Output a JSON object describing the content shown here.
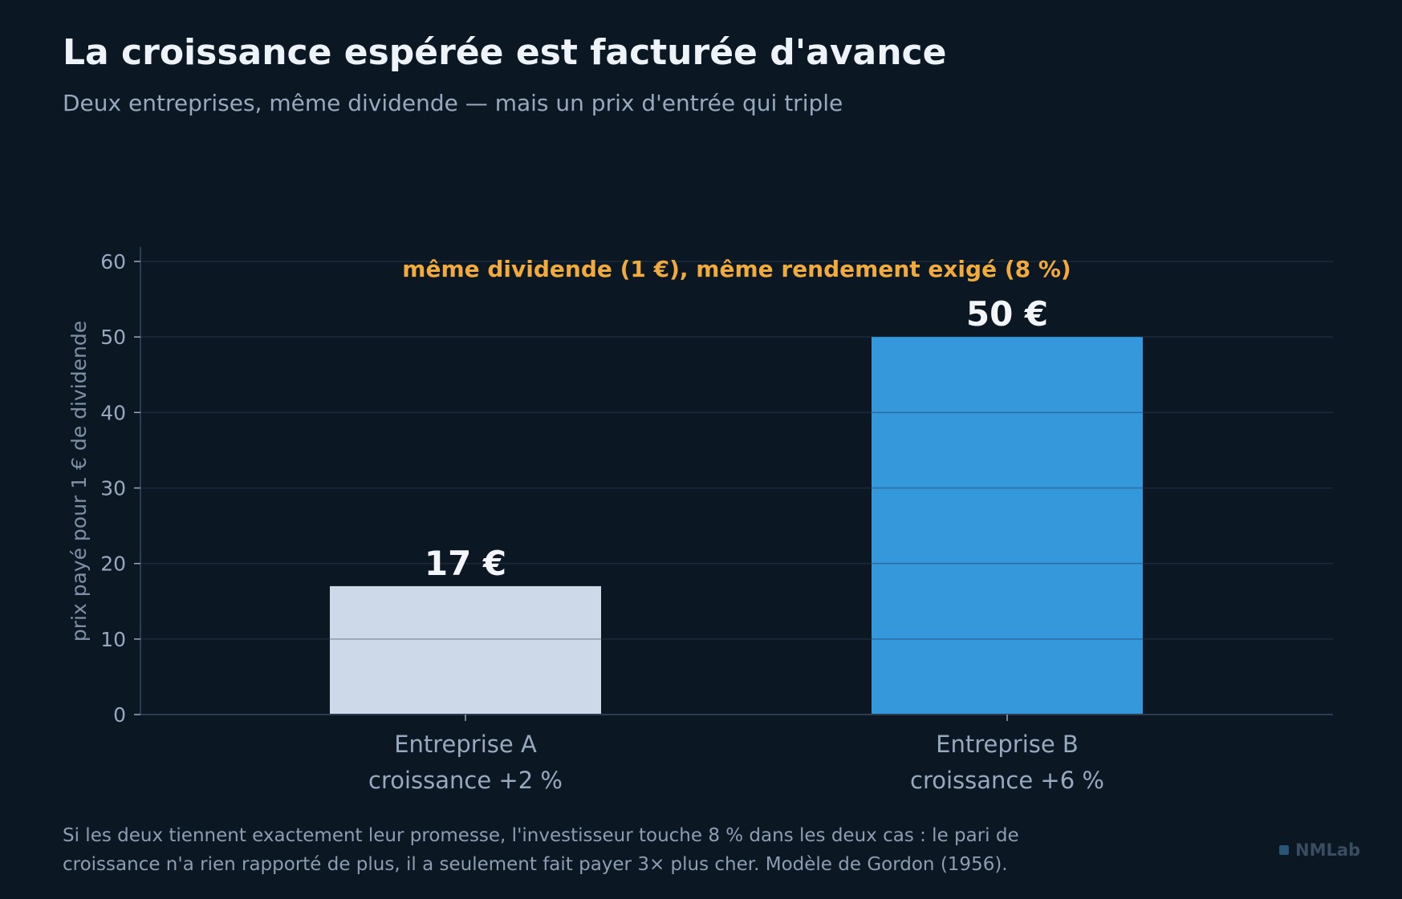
{
  "header": {
    "title": "La croissance espérée est facturée d'avance",
    "subtitle": "Deux entreprises, même dividende — mais un prix d'entrée qui triple"
  },
  "chart_data": {
    "type": "bar",
    "categories": [
      [
        "Entreprise A",
        "croissance +2 %"
      ],
      [
        "Entreprise B",
        "croissance +6 %"
      ]
    ],
    "values": [
      17,
      50
    ],
    "value_labels": [
      "17 €",
      "50 €"
    ],
    "ylabel": "prix payé pour 1 € de dividende",
    "ylim": [
      0,
      60
    ],
    "yticks": [
      0,
      10,
      20,
      30,
      40,
      50,
      60
    ],
    "annotation": "même dividende (1 €), même rendement exigé (8 %)",
    "grid": true,
    "colors": {
      "bar_a": "#cdd8e8",
      "bar_b": "#3498db",
      "annotation": "#f0ab3c",
      "axis_text": "#98a9bf",
      "grid": "#1b2a3b"
    }
  },
  "footnote": {
    "line1": "Si les deux tiennent exactement leur promesse, l'investisseur touche 8 % dans les deux cas : le pari de",
    "line2": "croissance n'a rien rapporté de plus, il a seulement fait payer 3× plus cher. Modèle de Gordon (1956)."
  },
  "brand": {
    "name": "NMLab"
  }
}
